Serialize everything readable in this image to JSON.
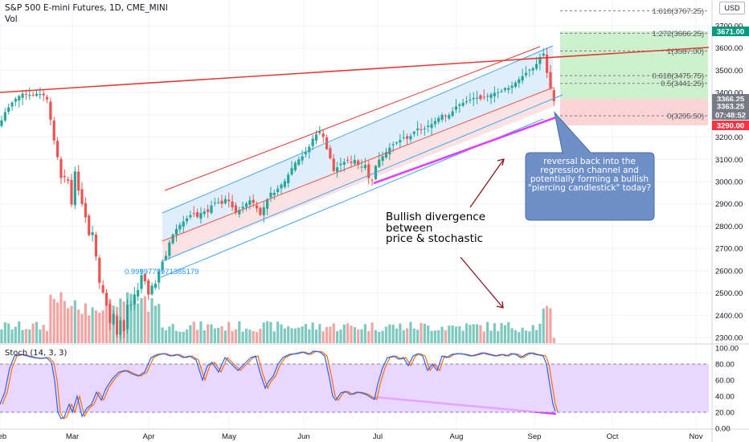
{
  "header": {
    "symbol_line": "S&P 500 E-mini Futures, 1D, CME_MINI",
    "volume_label": "Vol",
    "currency_button": "USD",
    "stoch_label": "Stoch (14, 3, 3)"
  },
  "annotations": {
    "divergence_text": [
      "Bullish divergence",
      "between",
      "price & stochastic"
    ],
    "callout_text": "reversal back into the regression channel and potentially forming a bullish \"piercing candlestick\" today?",
    "fib_ratio_label": "0.9999779971385179"
  },
  "fib_levels": [
    {
      "label": "1.618(3767.25)",
      "value": 3767.25
    },
    {
      "label": "1.272(3666.25)",
      "value": 3666.25
    },
    {
      "label": "1(3587.00)",
      "value": 3587.0
    },
    {
      "label": "0.618(3475.75)",
      "value": 3475.75
    },
    {
      "label": "0.5(3441.25)",
      "value": 3441.25
    },
    {
      "label": "0(3295.50)",
      "value": 3295.5
    }
  ],
  "price_badges": [
    {
      "text": "3671.00",
      "color": "#089981"
    },
    {
      "text": "3366.25",
      "color": "#787b86"
    },
    {
      "text": "3363.25",
      "color": "#787b86"
    },
    {
      "text": "07:48:52",
      "color": "#787b86"
    },
    {
      "text": "3290.00",
      "color": "#f23645"
    }
  ],
  "colors": {
    "up": "#26a69a",
    "down": "#ef5350",
    "vol_up": "#7dc9bf",
    "vol_down": "#f2a5a3",
    "trend_red": "#e53935",
    "magenta": "#e040fb",
    "channel_blue": "#42a5f5",
    "callout_fill": "#6f8fc9",
    "stoch_k": "#2962ff",
    "stoch_d": "#ff6d00",
    "stoch_band": "#e3c9ff"
  },
  "chart_data": [
    {
      "type": "candlestick",
      "title": "S&P 500 E-mini Futures, 1D, CME_MINI",
      "x_tick_labels": [
        "Feb",
        "Mar",
        "Apr",
        "May",
        "Jun",
        "Jul",
        "Aug",
        "Sep",
        "Oct",
        "Nov"
      ],
      "y_tick_labels": [
        "3700.00",
        "3600.00",
        "3500.00",
        "3400.00",
        "3300.00",
        "3200.00",
        "3100.00",
        "3000.00",
        "2900.00",
        "2800.00",
        "2700.00",
        "2600.00",
        "2500.00",
        "2400.00",
        "2300.00"
      ],
      "ylim": [
        2270,
        3790
      ],
      "close_path": [
        [
          0,
          3250
        ],
        [
          4,
          3300
        ],
        [
          10,
          3330
        ],
        [
          16,
          3360
        ],
        [
          22,
          3380
        ],
        [
          28,
          3395
        ],
        [
          34,
          3390
        ],
        [
          40,
          3388
        ],
        [
          46,
          3395
        ],
        [
          52,
          3392
        ],
        [
          58,
          3380
        ],
        [
          62,
          3300
        ],
        [
          66,
          3200
        ],
        [
          70,
          3150
        ],
        [
          74,
          3050
        ],
        [
          78,
          2980
        ],
        [
          82,
          3050
        ],
        [
          86,
          2980
        ],
        [
          90,
          2870
        ],
        [
          94,
          3080
        ],
        [
          98,
          2950
        ],
        [
          102,
          2900
        ],
        [
          106,
          2850
        ],
        [
          110,
          2750
        ],
        [
          114,
          2800
        ],
        [
          118,
          2700
        ],
        [
          122,
          2600
        ],
        [
          126,
          2480
        ],
        [
          130,
          2520
        ],
        [
          134,
          2400
        ],
        [
          138,
          2350
        ],
        [
          142,
          2420
        ],
        [
          146,
          2300
        ],
        [
          150,
          2380
        ],
        [
          154,
          2320
        ],
        [
          158,
          2450
        ],
        [
          162,
          2430
        ],
        [
          166,
          2500
        ],
        [
          170,
          2480
        ],
        [
          174,
          2560
        ],
        [
          178,
          2600
        ],
        [
          182,
          2520
        ],
        [
          186,
          2480
        ],
        [
          190,
          2550
        ],
        [
          194,
          2540
        ],
        [
          198,
          2600
        ],
        [
          202,
          2640
        ],
        [
          206,
          2660
        ],
        [
          210,
          2720
        ],
        [
          216,
          2770
        ],
        [
          222,
          2800
        ],
        [
          228,
          2820
        ],
        [
          234,
          2840
        ],
        [
          240,
          2860
        ],
        [
          246,
          2840
        ],
        [
          252,
          2870
        ],
        [
          258,
          2860
        ],
        [
          264,
          2900
        ],
        [
          270,
          2910
        ],
        [
          276,
          2900
        ],
        [
          282,
          2930
        ],
        [
          288,
          2890
        ],
        [
          294,
          2860
        ],
        [
          300,
          2880
        ],
        [
          306,
          2900
        ],
        [
          312,
          2920
        ],
        [
          318,
          2890
        ],
        [
          324,
          2850
        ],
        [
          330,
          2900
        ],
        [
          336,
          2950
        ],
        [
          342,
          2950
        ],
        [
          348,
          2980
        ],
        [
          354,
          3000
        ],
        [
          360,
          3040
        ],
        [
          366,
          3080
        ],
        [
          372,
          3100
        ],
        [
          378,
          3120
        ],
        [
          384,
          3150
        ],
        [
          390,
          3200
        ],
        [
          396,
          3220
        ],
        [
          400,
          3230
        ],
        [
          406,
          3150
        ],
        [
          410,
          3120
        ],
        [
          414,
          3050
        ],
        [
          418,
          3040
        ],
        [
          422,
          3100
        ],
        [
          426,
          3060
        ],
        [
          430,
          3110
        ],
        [
          436,
          3080
        ],
        [
          442,
          3100
        ],
        [
          448,
          3060
        ],
        [
          454,
          3080
        ],
        [
          460,
          3000
        ],
        [
          464,
          3010
        ],
        [
          468,
          3080
        ],
        [
          472,
          3100
        ],
        [
          478,
          3120
        ],
        [
          484,
          3150
        ],
        [
          490,
          3170
        ],
        [
          496,
          3180
        ],
        [
          502,
          3200
        ],
        [
          508,
          3190
        ],
        [
          514,
          3220
        ],
        [
          520,
          3240
        ],
        [
          526,
          3230
        ],
        [
          532,
          3250
        ],
        [
          538,
          3260
        ],
        [
          544,
          3280
        ],
        [
          550,
          3300
        ],
        [
          556,
          3290
        ],
        [
          562,
          3310
        ],
        [
          568,
          3340
        ],
        [
          574,
          3350
        ],
        [
          580,
          3360
        ],
        [
          586,
          3370
        ],
        [
          592,
          3380
        ],
        [
          598,
          3370
        ],
        [
          604,
          3380
        ],
        [
          610,
          3390
        ],
        [
          616,
          3400
        ],
        [
          622,
          3400
        ],
        [
          628,
          3420
        ],
        [
          634,
          3420
        ],
        [
          640,
          3440
        ],
        [
          646,
          3460
        ],
        [
          652,
          3480
        ],
        [
          658,
          3500
        ],
        [
          664,
          3510
        ],
        [
          668,
          3530
        ],
        [
          672,
          3560
        ],
        [
          676,
          3580
        ],
        [
          679,
          3520
        ],
        [
          682,
          3460
        ],
        [
          685,
          3420
        ],
        [
          688,
          3370
        ],
        [
          691,
          3350
        ]
      ],
      "volume_scale_note": "volume shown as relative bar heights (0-1)",
      "stochastic_k_path": [
        [
          0,
          30
        ],
        [
          6,
          45
        ],
        [
          12,
          75
        ],
        [
          18,
          90
        ],
        [
          26,
          92
        ],
        [
          34,
          90
        ],
        [
          42,
          88
        ],
        [
          50,
          87
        ],
        [
          58,
          88
        ],
        [
          64,
          82
        ],
        [
          68,
          60
        ],
        [
          72,
          20
        ],
        [
          76,
          12
        ],
        [
          80,
          14
        ],
        [
          86,
          30
        ],
        [
          90,
          20
        ],
        [
          96,
          40
        ],
        [
          102,
          15
        ],
        [
          108,
          25
        ],
        [
          114,
          30
        ],
        [
          120,
          45
        ],
        [
          126,
          35
        ],
        [
          132,
          50
        ],
        [
          140,
          62
        ],
        [
          148,
          70
        ],
        [
          156,
          72
        ],
        [
          164,
          68
        ],
        [
          172,
          65
        ],
        [
          180,
          70
        ],
        [
          188,
          88
        ],
        [
          196,
          92
        ],
        [
          204,
          93
        ],
        [
          212,
          90
        ],
        [
          220,
          92
        ],
        [
          228,
          88
        ],
        [
          236,
          90
        ],
        [
          244,
          85
        ],
        [
          252,
          60
        ],
        [
          258,
          78
        ],
        [
          264,
          82
        ],
        [
          272,
          70
        ],
        [
          280,
          88
        ],
        [
          288,
          80
        ],
        [
          296,
          72
        ],
        [
          304,
          80
        ],
        [
          312,
          88
        ],
        [
          318,
          90
        ],
        [
          324,
          68
        ],
        [
          330,
          50
        ],
        [
          334,
          58
        ],
        [
          340,
          65
        ],
        [
          346,
          80
        ],
        [
          352,
          88
        ],
        [
          360,
          92
        ],
        [
          368,
          93
        ],
        [
          376,
          95
        ],
        [
          384,
          92
        ],
        [
          390,
          96
        ],
        [
          398,
          95
        ],
        [
          404,
          90
        ],
        [
          410,
          62
        ],
        [
          414,
          40
        ],
        [
          418,
          35
        ],
        [
          424,
          44
        ],
        [
          430,
          46
        ],
        [
          436,
          42
        ],
        [
          444,
          45
        ],
        [
          450,
          44
        ],
        [
          456,
          42
        ],
        [
          462,
          38
        ],
        [
          466,
          36
        ],
        [
          470,
          55
        ],
        [
          476,
          75
        ],
        [
          482,
          88
        ],
        [
          490,
          90
        ],
        [
          496,
          86
        ],
        [
          502,
          88
        ],
        [
          508,
          78
        ],
        [
          514,
          90
        ],
        [
          520,
          93
        ],
        [
          526,
          90
        ],
        [
          532,
          72
        ],
        [
          538,
          80
        ],
        [
          544,
          72
        ],
        [
          550,
          90
        ],
        [
          556,
          88
        ],
        [
          562,
          92
        ],
        [
          570,
          93
        ],
        [
          578,
          92
        ],
        [
          586,
          90
        ],
        [
          594,
          92
        ],
        [
          600,
          94
        ],
        [
          608,
          92
        ],
        [
          616,
          90
        ],
        [
          624,
          92
        ],
        [
          630,
          90
        ],
        [
          636,
          93
        ],
        [
          642,
          92
        ],
        [
          648,
          88
        ],
        [
          654,
          92
        ],
        [
          660,
          94
        ],
        [
          666,
          92
        ],
        [
          672,
          91
        ],
        [
          676,
          90
        ],
        [
          680,
          80
        ],
        [
          684,
          55
        ],
        [
          688,
          30
        ],
        [
          691,
          21
        ]
      ],
      "stochastic_ylim": [
        0,
        100
      ],
      "stochastic_tick_labels": [
        "100.00",
        "80.00",
        "60.00",
        "40.00",
        "20.00",
        "0.00"
      ]
    }
  ]
}
